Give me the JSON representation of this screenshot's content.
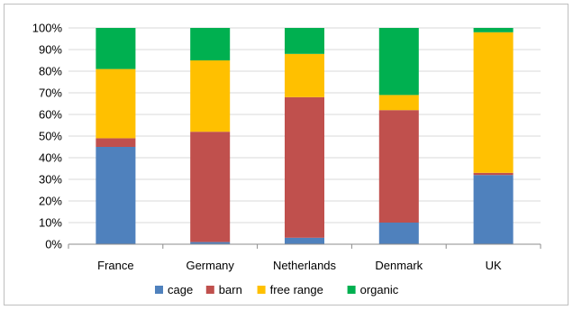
{
  "chart_data": {
    "type": "bar",
    "stacked": true,
    "categories": [
      "France",
      "Germany",
      "Netherlands",
      "Denmark",
      "UK"
    ],
    "series": [
      {
        "name": "cage",
        "color": "#4F81BD",
        "values": [
          45,
          1,
          3,
          10,
          32
        ]
      },
      {
        "name": "barn",
        "color": "#C0504D",
        "values": [
          4,
          51,
          65,
          52,
          1
        ]
      },
      {
        "name": "free range",
        "color": "#FFC000",
        "values": [
          32,
          33,
          20,
          7,
          65
        ]
      },
      {
        "name": "organic",
        "color": "#00B050",
        "values": [
          19,
          15,
          12,
          31,
          2
        ]
      }
    ],
    "ylim": [
      0,
      100
    ],
    "yticks": [
      "0%",
      "10%",
      "20%",
      "30%",
      "40%",
      "50%",
      "60%",
      "70%",
      "80%",
      "90%",
      "100%"
    ],
    "grid": true,
    "legend_position": "bottom"
  }
}
